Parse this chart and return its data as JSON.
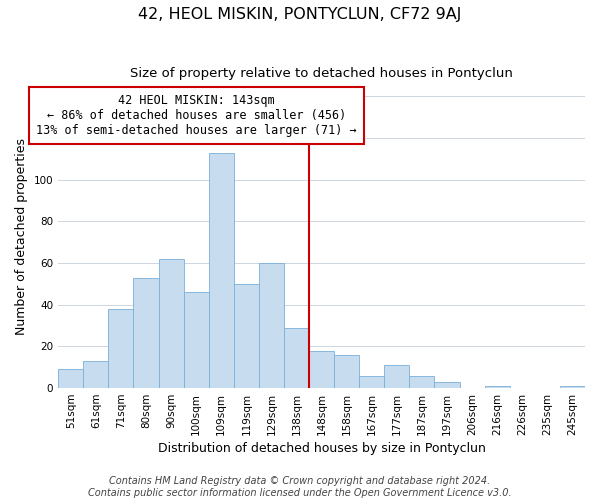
{
  "title": "42, HEOL MISKIN, PONTYCLUN, CF72 9AJ",
  "subtitle": "Size of property relative to detached houses in Pontyclun",
  "xlabel": "Distribution of detached houses by size in Pontyclun",
  "ylabel": "Number of detached properties",
  "footer_lines": [
    "Contains HM Land Registry data © Crown copyright and database right 2024.",
    "Contains public sector information licensed under the Open Government Licence v3.0."
  ],
  "bar_labels": [
    "51sqm",
    "61sqm",
    "71sqm",
    "80sqm",
    "90sqm",
    "100sqm",
    "109sqm",
    "119sqm",
    "129sqm",
    "138sqm",
    "148sqm",
    "158sqm",
    "167sqm",
    "177sqm",
    "187sqm",
    "197sqm",
    "206sqm",
    "216sqm",
    "226sqm",
    "235sqm",
    "245sqm"
  ],
  "bar_values": [
    9,
    13,
    38,
    53,
    62,
    46,
    113,
    50,
    60,
    29,
    18,
    16,
    6,
    11,
    6,
    3,
    0,
    1,
    0,
    0,
    1
  ],
  "bar_color": "#c8dcf0",
  "bar_edge_color": "#7ab0d8",
  "vline_x": 9.5,
  "vline_color": "#cc0000",
  "ylim": [
    0,
    145
  ],
  "annotation_line1": "42 HEOL MISKIN: 143sqm",
  "annotation_line2": "← 86% of detached houses are smaller (456)",
  "annotation_line3": "13% of semi-detached houses are larger (71) →",
  "annotation_box_color": "#ffffff",
  "annotation_box_edge": "#cc0000",
  "grid_color": "#ccd5e0",
  "title_fontsize": 11.5,
  "subtitle_fontsize": 9.5,
  "xlabel_fontsize": 9,
  "ylabel_fontsize": 9,
  "tick_fontsize": 7.5,
  "annotation_fontsize": 8.5,
  "footer_fontsize": 7
}
